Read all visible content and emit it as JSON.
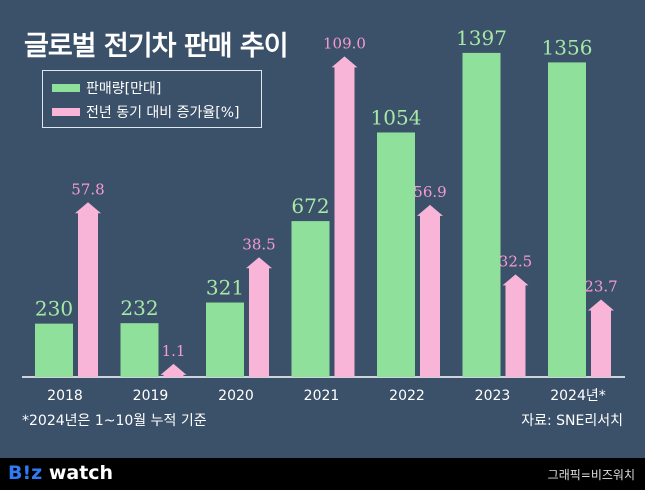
{
  "chart_data": {
    "type": "bar",
    "title": "글로벌 전기차 판매 추이",
    "categories": [
      "2018",
      "2019",
      "2020",
      "2021",
      "2022",
      "2023",
      "2024년*"
    ],
    "series": [
      {
        "name": "판매량[만대]",
        "values": [
          230,
          232,
          321,
          672,
          1054,
          1397,
          1356
        ],
        "color": "#8ee09a",
        "label_color": "#a6e8a6"
      },
      {
        "name": "전년 동기 대비 증가율[%]",
        "values": [
          57.8,
          1.1,
          38.5,
          109.0,
          56.9,
          32.5,
          23.7
        ],
        "color": "#f8b5d8",
        "label_color": "#f59bd0"
      }
    ],
    "legend_position": "top-left",
    "grid": false
  },
  "note": "*2024년은 1~10월 누적 기준",
  "source": "자료: SNE리서치",
  "footer": {
    "logo_b": "B!z",
    "logo_rest": " watch",
    "credit": "그래픽=비즈워치"
  }
}
